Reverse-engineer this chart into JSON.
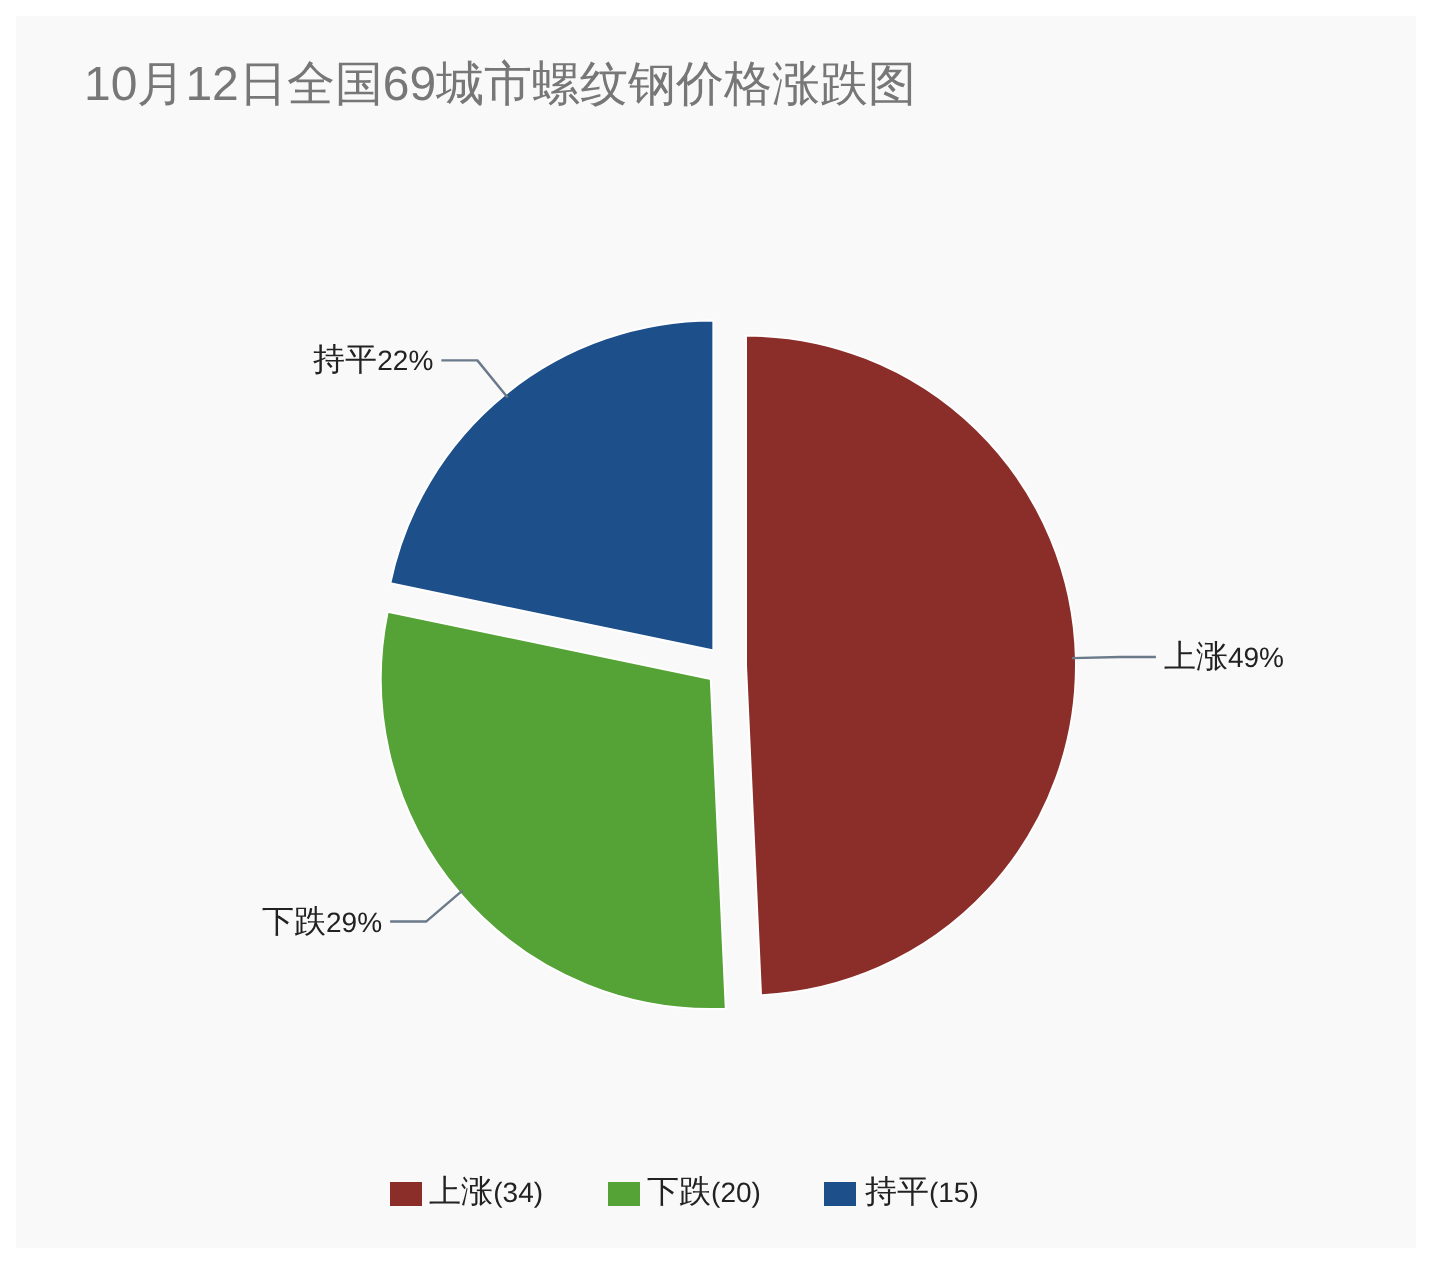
{
  "chart_data": {
    "type": "pie",
    "title": "10月12日全国69城市螺纹钢价格涨跌图",
    "categories": [
      "上涨",
      "下跌",
      "持平"
    ],
    "values": [
      34,
      20,
      15
    ],
    "value_labels": [
      "(34)",
      "(20)",
      "(15)"
    ],
    "colors": [
      "#8b2e2a",
      "#55a336",
      "#1d4f8a"
    ],
    "annotations": [
      {
        "text": "49%",
        "x": "上涨"
      },
      {
        "text": "29%",
        "x": "下跌"
      },
      {
        "text": "22%",
        "x": "持平"
      }
    ],
    "legend": "bottom"
  }
}
